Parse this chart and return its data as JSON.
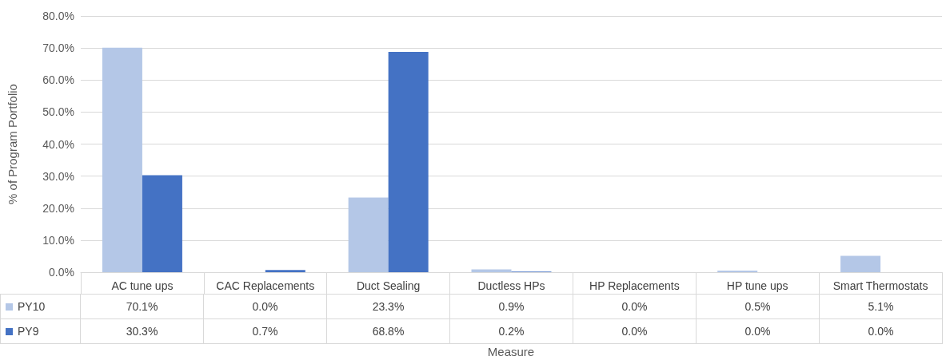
{
  "chart_data": {
    "type": "bar",
    "xlabel": "Measure",
    "ylabel": "% of Program Portfolio",
    "categories": [
      "AC tune ups",
      "CAC Replacements",
      "Duct Sealing",
      "Ductless HPs",
      "HP Replacements",
      "HP tune ups",
      "Smart Thermostats"
    ],
    "series": [
      {
        "name": "PY10",
        "color": "#b4c7e7",
        "values": [
          70.1,
          0.0,
          23.3,
          0.9,
          0.0,
          0.5,
          5.1
        ],
        "value_labels": [
          "70.1%",
          "0.0%",
          "23.3%",
          "0.9%",
          "0.0%",
          "0.5%",
          "5.1%"
        ]
      },
      {
        "name": "PY9",
        "color": "#4472c4",
        "values": [
          30.3,
          0.7,
          68.8,
          0.2,
          0.0,
          0.0,
          0.0
        ],
        "value_labels": [
          "30.3%",
          "0.7%",
          "68.8%",
          "0.2%",
          "0.0%",
          "0.0%",
          "0.0%"
        ]
      }
    ],
    "ylim": [
      0,
      80
    ],
    "yticks": [
      {
        "value": 0,
        "label": "0.0%"
      },
      {
        "value": 10,
        "label": "10.0%"
      },
      {
        "value": 20,
        "label": "20.0%"
      },
      {
        "value": 30,
        "label": "30.0%"
      },
      {
        "value": 40,
        "label": "40.0%"
      },
      {
        "value": 50,
        "label": "50.0%"
      },
      {
        "value": 60,
        "label": "60.0%"
      },
      {
        "value": 70,
        "label": "70.0%"
      },
      {
        "value": 80,
        "label": "80.0%"
      }
    ],
    "grid": "y",
    "legend": "bottom left"
  }
}
